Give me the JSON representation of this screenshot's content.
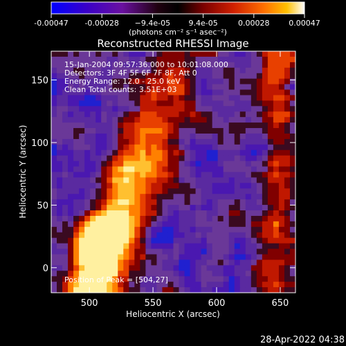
{
  "colorbar": {
    "tick_labels": [
      "-0.00047",
      "-0.00028",
      "−9.4e-05",
      "9.4e-05",
      "0.00028",
      "0.00047"
    ],
    "unit_label": "(photons cm⁻² s⁻¹ asec⁻²)",
    "colors": [
      "#0000ff",
      "#3a00c8",
      "#6a10a0",
      "#200010",
      "#000000",
      "#7a0000",
      "#d02000",
      "#ff7000",
      "#ffc000",
      "#ffffff"
    ]
  },
  "plot": {
    "title": "Reconstructed RHESSI Image",
    "xlabel": "Heliocentric X (arcsec)",
    "ylabel": "Heliocentric Y (arcsec)",
    "xlim": [
      470,
      662
    ],
    "ylim": [
      -20,
      173
    ],
    "xticks": [
      "500",
      "550",
      "600",
      "650"
    ],
    "yticks": [
      "0",
      "50",
      "100",
      "150"
    ],
    "info_lines": [
      "15-Jan-2004 09:57:36.000 to 10:01:08.000",
      "Detectors: 3F 4F 5F 6F 7F 8F, Att 0",
      "Energy Range: 12.0 - 25.0 keV",
      "Clean     Total counts: 3.51E+03"
    ],
    "peak_label": "Position of Peak = [504,27]"
  },
  "footer": {
    "timestamp": "28-Apr-2022 04:38"
  }
}
